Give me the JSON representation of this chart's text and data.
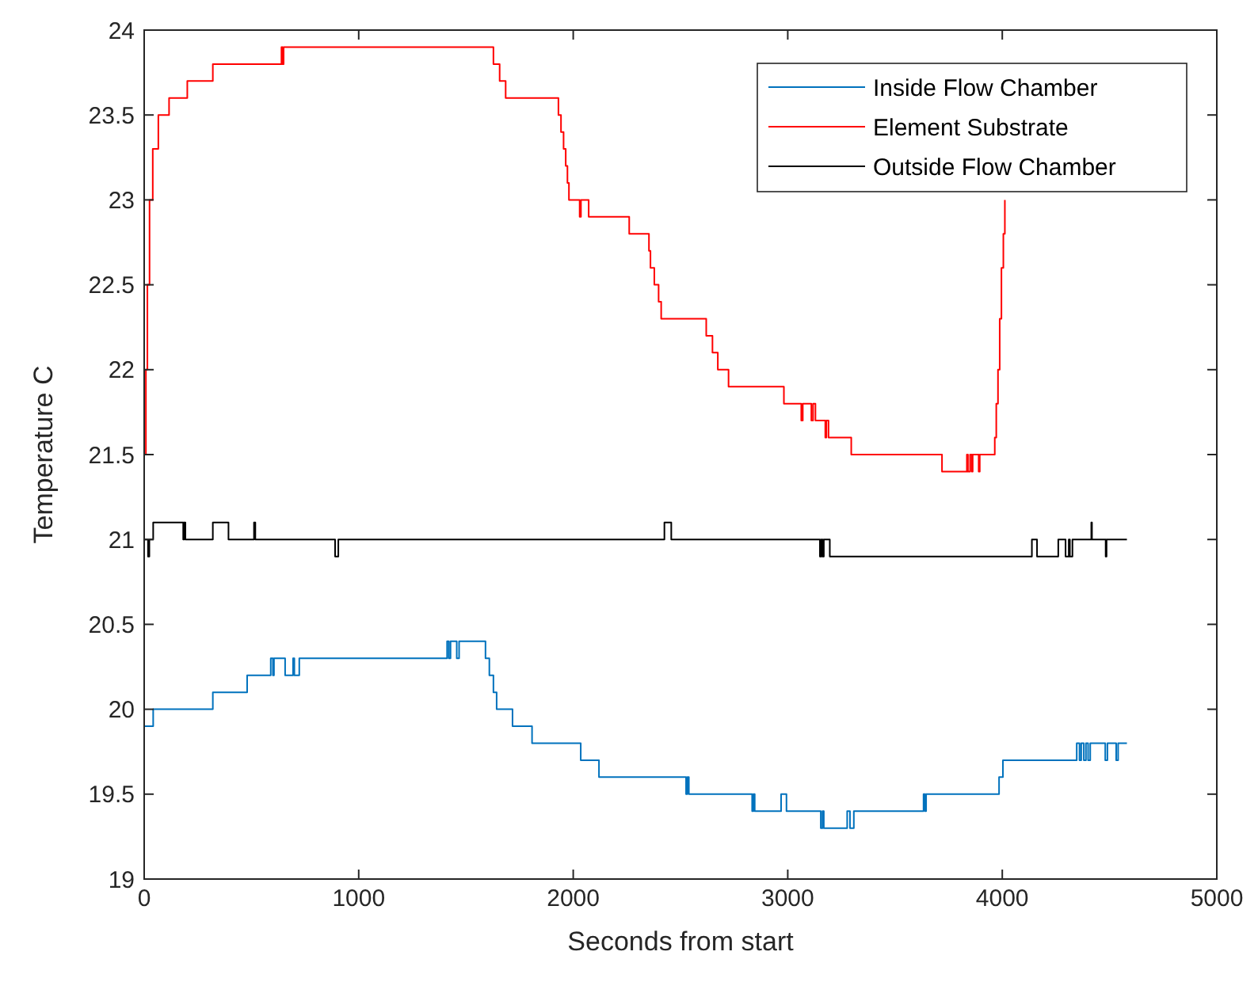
{
  "chart_data": {
    "type": "step",
    "xlabel": "Seconds from start",
    "ylabel": "Temperature C",
    "xlim": [
      0,
      5000
    ],
    "xticks": [
      0,
      1000,
      2000,
      3000,
      4000,
      5000
    ],
    "ylim": [
      19,
      24
    ],
    "yticks": [
      19,
      19.5,
      20,
      20.5,
      21,
      21.5,
      22,
      22.5,
      23,
      23.5,
      24
    ],
    "grid": false,
    "legend": "top right",
    "line_style": "solid",
    "marker": "none",
    "series": [
      {
        "name": "Inside Flow Chamber",
        "color": "#0072bd",
        "x": [
          0,
          42,
          320,
          480,
          590,
          600,
          605,
          657,
          694,
          700,
          723,
          1412,
          1420,
          1428,
          1457,
          1468,
          1591,
          1609,
          1628,
          1643,
          1717,
          1808,
          2035,
          2120,
          2526,
          2532,
          2539,
          2834,
          2840,
          2846,
          2969,
          2994,
          3154,
          3162,
          3168,
          3277,
          3290,
          3308,
          3633,
          3640,
          3645,
          3985,
          4003,
          4347,
          4360,
          4368,
          4380,
          4390,
          4400,
          4410,
          4480,
          4490,
          4531,
          4540,
          4581
        ],
        "values": [
          19.9,
          20.0,
          20.1,
          20.2,
          20.3,
          20.2,
          20.3,
          20.2,
          20.3,
          20.2,
          20.3,
          20.4,
          20.3,
          20.4,
          20.3,
          20.4,
          20.3,
          20.2,
          20.1,
          20.0,
          19.9,
          19.8,
          19.7,
          19.6,
          19.5,
          19.6,
          19.5,
          19.4,
          19.5,
          19.4,
          19.5,
          19.4,
          19.3,
          19.4,
          19.3,
          19.4,
          19.3,
          19.4,
          19.5,
          19.4,
          19.5,
          19.6,
          19.7,
          19.8,
          19.7,
          19.8,
          19.7,
          19.8,
          19.7,
          19.8,
          19.7,
          19.8,
          19.7,
          19.8,
          19.8
        ]
      },
      {
        "name": "Element Substrate",
        "color": "#ff0000",
        "x": [
          0,
          8,
          15,
          25,
          40,
          66,
          116,
          201,
          320,
          640,
          645,
          650,
          1628,
          1657,
          1685,
          1931,
          1943,
          1955,
          1965,
          1973,
          1980,
          2030,
          2036,
          2072,
          2261,
          2353,
          2360,
          2378,
          2398,
          2410,
          2620,
          2649,
          2674,
          2724,
          2982,
          3063,
          3070,
          3110,
          3118,
          3129,
          3175,
          3180,
          3190,
          3296,
          3719,
          3835,
          3840,
          3850,
          3858,
          3862,
          3890,
          3895,
          3965,
          3972,
          3980,
          3988,
          3996,
          4005,
          4012
        ],
        "values": [
          21.5,
          22.0,
          22.5,
          23.0,
          23.3,
          23.5,
          23.6,
          23.7,
          23.8,
          23.9,
          23.8,
          23.9,
          23.8,
          23.7,
          23.6,
          23.5,
          23.4,
          23.3,
          23.2,
          23.1,
          23.0,
          22.9,
          23.0,
          22.9,
          22.8,
          22.7,
          22.6,
          22.5,
          22.4,
          22.3,
          22.2,
          22.1,
          22.0,
          21.9,
          21.8,
          21.7,
          21.8,
          21.7,
          21.8,
          21.7,
          21.6,
          21.7,
          21.6,
          21.5,
          21.4,
          21.5,
          21.4,
          21.5,
          21.4,
          21.5,
          21.4,
          21.5,
          21.6,
          21.8,
          22.0,
          22.3,
          22.6,
          22.8,
          23.0
        ]
      },
      {
        "name": "Outside Flow Chamber",
        "color": "#000000",
        "x": [
          0,
          18,
          24,
          42,
          182,
          186,
          192,
          320,
          393,
          512,
          518,
          890,
          905,
          2425,
          2457,
          3150,
          3156,
          3162,
          3168,
          3196,
          4138,
          4162,
          4261,
          4295,
          4310,
          4315,
          4327,
          4415,
          4418,
          4482,
          4486,
          4581
        ],
        "values": [
          21.0,
          20.9,
          21.0,
          21.1,
          21.0,
          21.1,
          21.0,
          21.1,
          21.0,
          21.1,
          21.0,
          20.9,
          21.0,
          21.1,
          21.0,
          20.9,
          21.0,
          20.9,
          21.0,
          20.9,
          21.0,
          20.9,
          21.0,
          20.9,
          21.0,
          20.9,
          21.0,
          21.1,
          21.0,
          20.9,
          21.0,
          21.0
        ]
      }
    ]
  }
}
